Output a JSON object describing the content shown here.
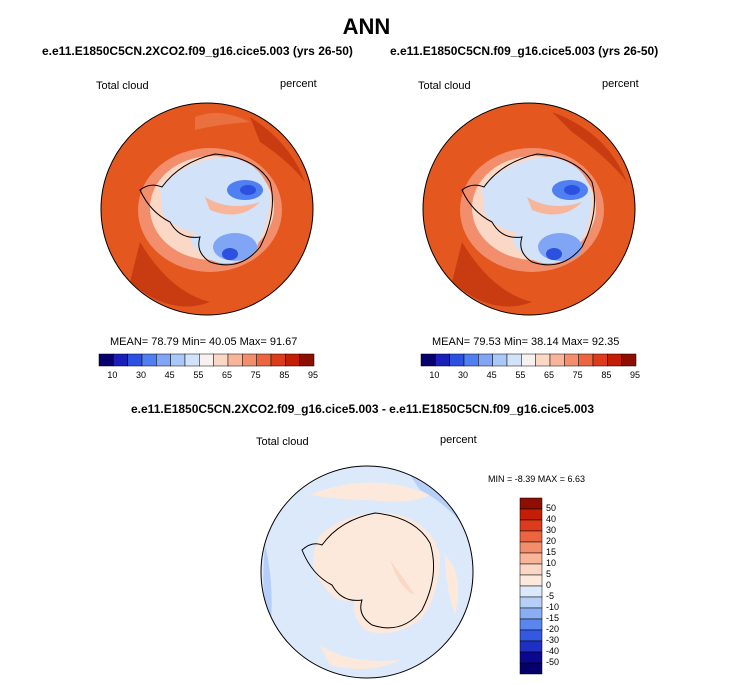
{
  "title": "ANN",
  "panels": [
    {
      "case": "e.e11.E1850C5CN.2XCO2.f09_g16.cice5.003 (yrs 26-50)",
      "variable": "Total cloud",
      "units": "percent",
      "stats": "MEAN= 78.79 Min= 40.05 Max= 91.67"
    },
    {
      "case": "e.e11.E1850C5CN.f09_g16.cice5.003 (yrs 26-50)",
      "variable": "Total cloud",
      "units": "percent",
      "stats": "MEAN= 79.53 Min= 38.14 Max= 92.35"
    }
  ],
  "diff_panel": {
    "case": "e.e11.E1850C5CN.2XCO2.f09_g16.cice5.003 - e.e11.E1850C5CN.f09_g16.cice5.003",
    "variable": "Total cloud",
    "units": "percent",
    "stats": "MIN = -8.39 MAX = 6.63"
  },
  "colorbar_abs": {
    "labels": [
      "10",
      "30",
      "45",
      "55",
      "65",
      "75",
      "85",
      "95"
    ],
    "colors": [
      "#08006d",
      "#1a1fb8",
      "#2c50e0",
      "#4f7ff0",
      "#7fa5f4",
      "#aac8f7",
      "#d2e2f9",
      "#f7f2f0",
      "#fbd8c6",
      "#f8b59a",
      "#f28e6c",
      "#ea6540",
      "#dd3c1c",
      "#c41e06",
      "#8e0e02"
    ]
  },
  "colorbar_diff": {
    "labels": [
      "50",
      "40",
      "30",
      "20",
      "15",
      "10",
      "5",
      "0",
      "-5",
      "-10",
      "-15",
      "-20",
      "-30",
      "-40",
      "-50"
    ],
    "colors": [
      "#8e0e02",
      "#c41e06",
      "#dd3c1c",
      "#ea6540",
      "#f28e6c",
      "#f8b59a",
      "#fbd8c6",
      "#fde9dc",
      "#dbe9fb",
      "#b6cff8",
      "#8aaef4",
      "#5a86ee",
      "#3358e2",
      "#1e2fc4",
      "#0b0890",
      "#06006a"
    ]
  }
}
